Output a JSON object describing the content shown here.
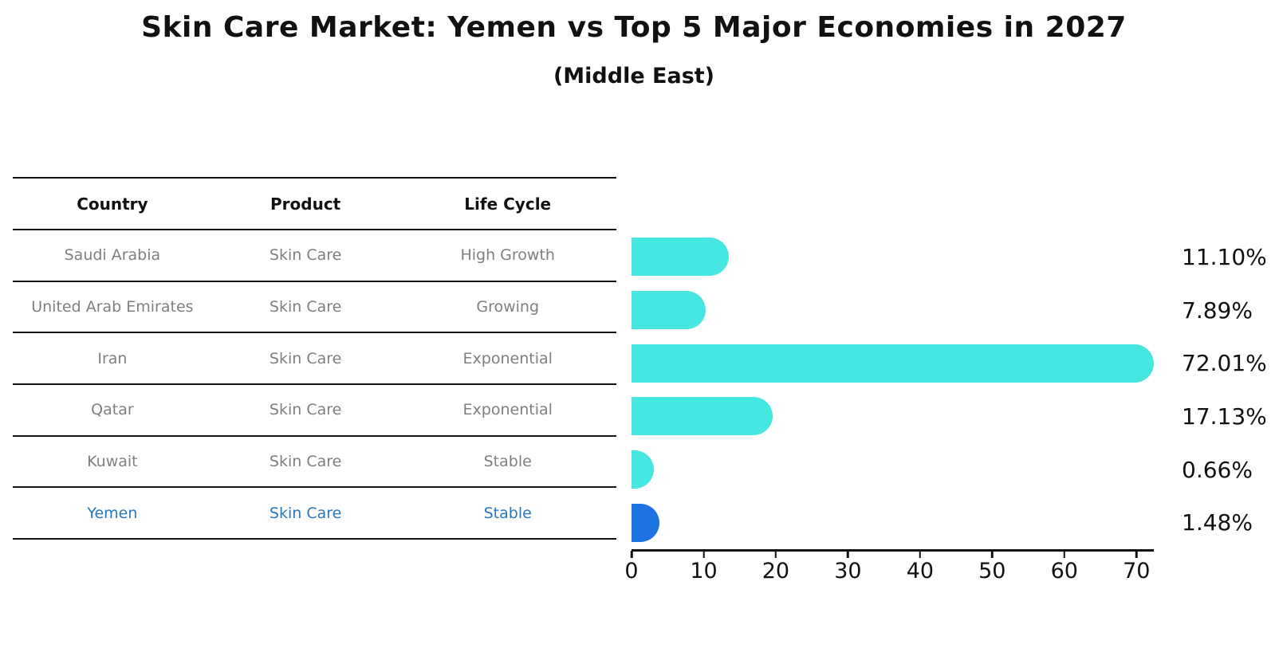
{
  "title": "Skin Care Market: Yemen vs Top 5 Major Economies in 2027",
  "subtitle": "(Middle East)",
  "table": {
    "headers": [
      "Country",
      "Product",
      "Life Cycle"
    ],
    "rows": [
      {
        "country": "Saudi Arabia",
        "product": "Skin Care",
        "life_cycle": "High Growth",
        "highlight": false
      },
      {
        "country": "United Arab Emirates",
        "product": "Skin Care",
        "life_cycle": "Growing",
        "highlight": false
      },
      {
        "country": "Iran",
        "product": "Skin Care",
        "life_cycle": "Exponential",
        "highlight": false
      },
      {
        "country": "Qatar",
        "product": "Skin Care",
        "life_cycle": "Exponential",
        "highlight": false
      },
      {
        "country": "Kuwait",
        "product": "Skin Care",
        "life_cycle": "Stable",
        "highlight": false
      },
      {
        "country": "Yemen",
        "product": "Skin Care",
        "life_cycle": "Stable",
        "highlight": true
      }
    ]
  },
  "chart_data": {
    "type": "bar",
    "orientation": "horizontal",
    "title": "Skin Care Market: Yemen vs Top 5 Major Economies in 2027",
    "subtitle": "(Middle East)",
    "categories": [
      "Saudi Arabia",
      "United Arab Emirates",
      "Iran",
      "Qatar",
      "Kuwait",
      "Yemen"
    ],
    "values": [
      11.1,
      7.89,
      72.01,
      17.13,
      0.66,
      1.48
    ],
    "value_labels": [
      "11.10%",
      "7.89%",
      "72.01%",
      "17.13%",
      "0.66%",
      "1.48%"
    ],
    "xticks": [
      0,
      10,
      20,
      30,
      40,
      50,
      60,
      70
    ],
    "xlim": [
      0,
      72.4
    ],
    "grid": false,
    "legend": null,
    "bar_color": "#45e7e0",
    "highlight_color": "#1d74e0",
    "highlight_index": 5
  },
  "colors": {
    "table_text": "#7f7f7f",
    "header_text": "#111111",
    "highlight_text": "#2878be",
    "line": "#111111",
    "background": "#ffffff"
  }
}
